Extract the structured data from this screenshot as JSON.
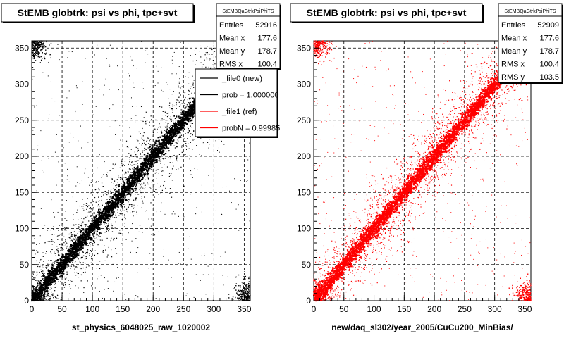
{
  "panels": [
    {
      "title": "StEMB globtrk: psi vs phi, tpc+svt",
      "xlabel": "st_physics_6048025_raw_1020002",
      "color": "#000000",
      "stats": {
        "name": "StEMBQaGtrkPsiPhiTS",
        "rows": [
          {
            "label": "Entries",
            "value": "52916"
          },
          {
            "label": "Mean x",
            "value": "177.6"
          },
          {
            "label": "Mean y",
            "value": "178.7"
          },
          {
            "label": "RMS x",
            "value": "100.4"
          }
        ]
      },
      "legend": [
        {
          "label": "_file0 (new)",
          "color": "#000000"
        },
        {
          "label": "prob = 1.000000",
          "color": "#000000"
        },
        {
          "label": "_file1 (ref)",
          "color": "#ff0000"
        },
        {
          "label": "probN = 0.99985",
          "color": "#ff0000"
        }
      ]
    },
    {
      "title": "StEMB globtrk: psi vs phi, tpc+svt",
      "xlabel": "new/daq_sl302/year_2005/CuCu200_MinBias/",
      "color": "#ff0000",
      "stats": {
        "name": "StEMBQaGtrkPsiPhiTS",
        "rows": [
          {
            "label": "Entries",
            "value": "52909"
          },
          {
            "label": "Mean x",
            "value": "177.6"
          },
          {
            "label": "Mean y",
            "value": "178.7"
          },
          {
            "label": "RMS x",
            "value": "100.4"
          },
          {
            "label": "RMS y",
            "value": "103.5"
          }
        ]
      },
      "legend": []
    }
  ],
  "chart_data": [
    {
      "type": "scatter",
      "title": "StEMB globtrk: psi vs phi, tpc+svt",
      "xlabel": "st_physics_6048025_raw_1020002",
      "ylabel": "",
      "xlim": [
        0,
        360
      ],
      "ylim": [
        0,
        360
      ],
      "xticks": [
        0,
        50,
        100,
        150,
        200,
        250,
        300,
        350
      ],
      "yticks": [
        0,
        50,
        100,
        150,
        200,
        250,
        300,
        350
      ],
      "grid": true,
      "series": [
        {
          "name": "_file0 (new)",
          "color": "#000000",
          "diagonal_band": [
            [
              0,
              0
            ],
            [
              360,
              360
            ]
          ]
        }
      ]
    },
    {
      "type": "scatter",
      "title": "StEMB globtrk: psi vs phi, tpc+svt",
      "xlabel": "new/daq_sl302/year_2005/CuCu200_MinBias/",
      "ylabel": "",
      "xlim": [
        0,
        360
      ],
      "ylim": [
        0,
        360
      ],
      "xticks": [
        0,
        50,
        100,
        150,
        200,
        250,
        300,
        350
      ],
      "yticks": [
        0,
        50,
        100,
        150,
        200,
        250,
        300,
        350
      ],
      "grid": true,
      "series": [
        {
          "name": "_file1 (ref)",
          "color": "#ff0000",
          "diagonal_band": [
            [
              0,
              0
            ],
            [
              360,
              360
            ]
          ]
        }
      ]
    }
  ]
}
